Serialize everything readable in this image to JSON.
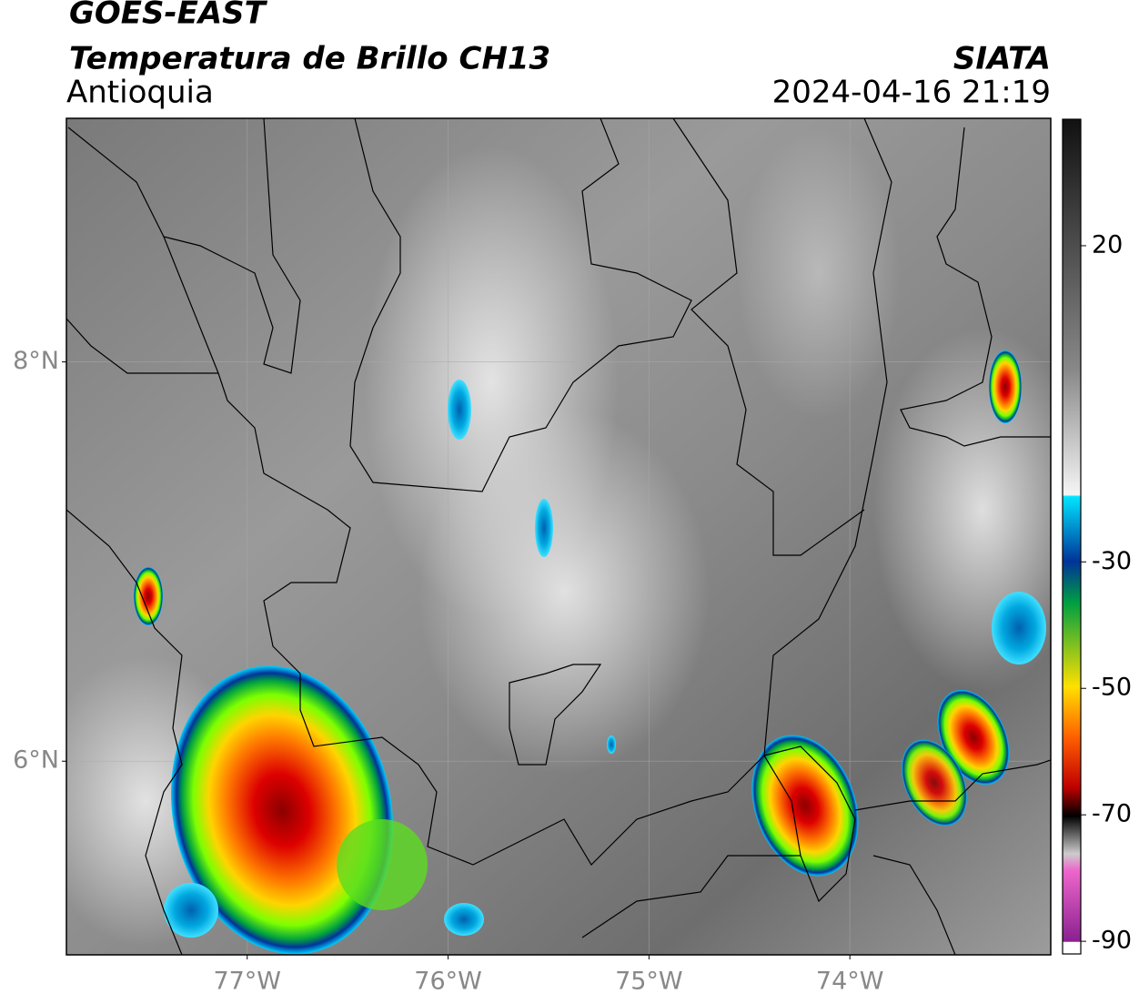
{
  "map": {
    "title": "GOES-EAST",
    "subtitle": "Temperatura de Brillo CH13",
    "region": "Antioquia",
    "source": "SIATA",
    "datetime": "2024-04-16 21:19",
    "lon_lim": [
      -77.9,
      -73.0
    ],
    "lat_lim": [
      5.03,
      9.22
    ],
    "lon_ticks": [
      {
        "value": -77,
        "label": "77°W"
      },
      {
        "value": -76,
        "label": "76°W"
      },
      {
        "value": -75,
        "label": "75°W"
      },
      {
        "value": -74,
        "label": "74°W"
      }
    ],
    "lat_ticks": [
      {
        "value": 8,
        "label": "8°N"
      },
      {
        "value": 6,
        "label": "6°N"
      }
    ],
    "colorbar": {
      "lim": [
        -92,
        40
      ],
      "ticks": [
        20,
        -30,
        -50,
        -70,
        -90
      ]
    }
  }
}
